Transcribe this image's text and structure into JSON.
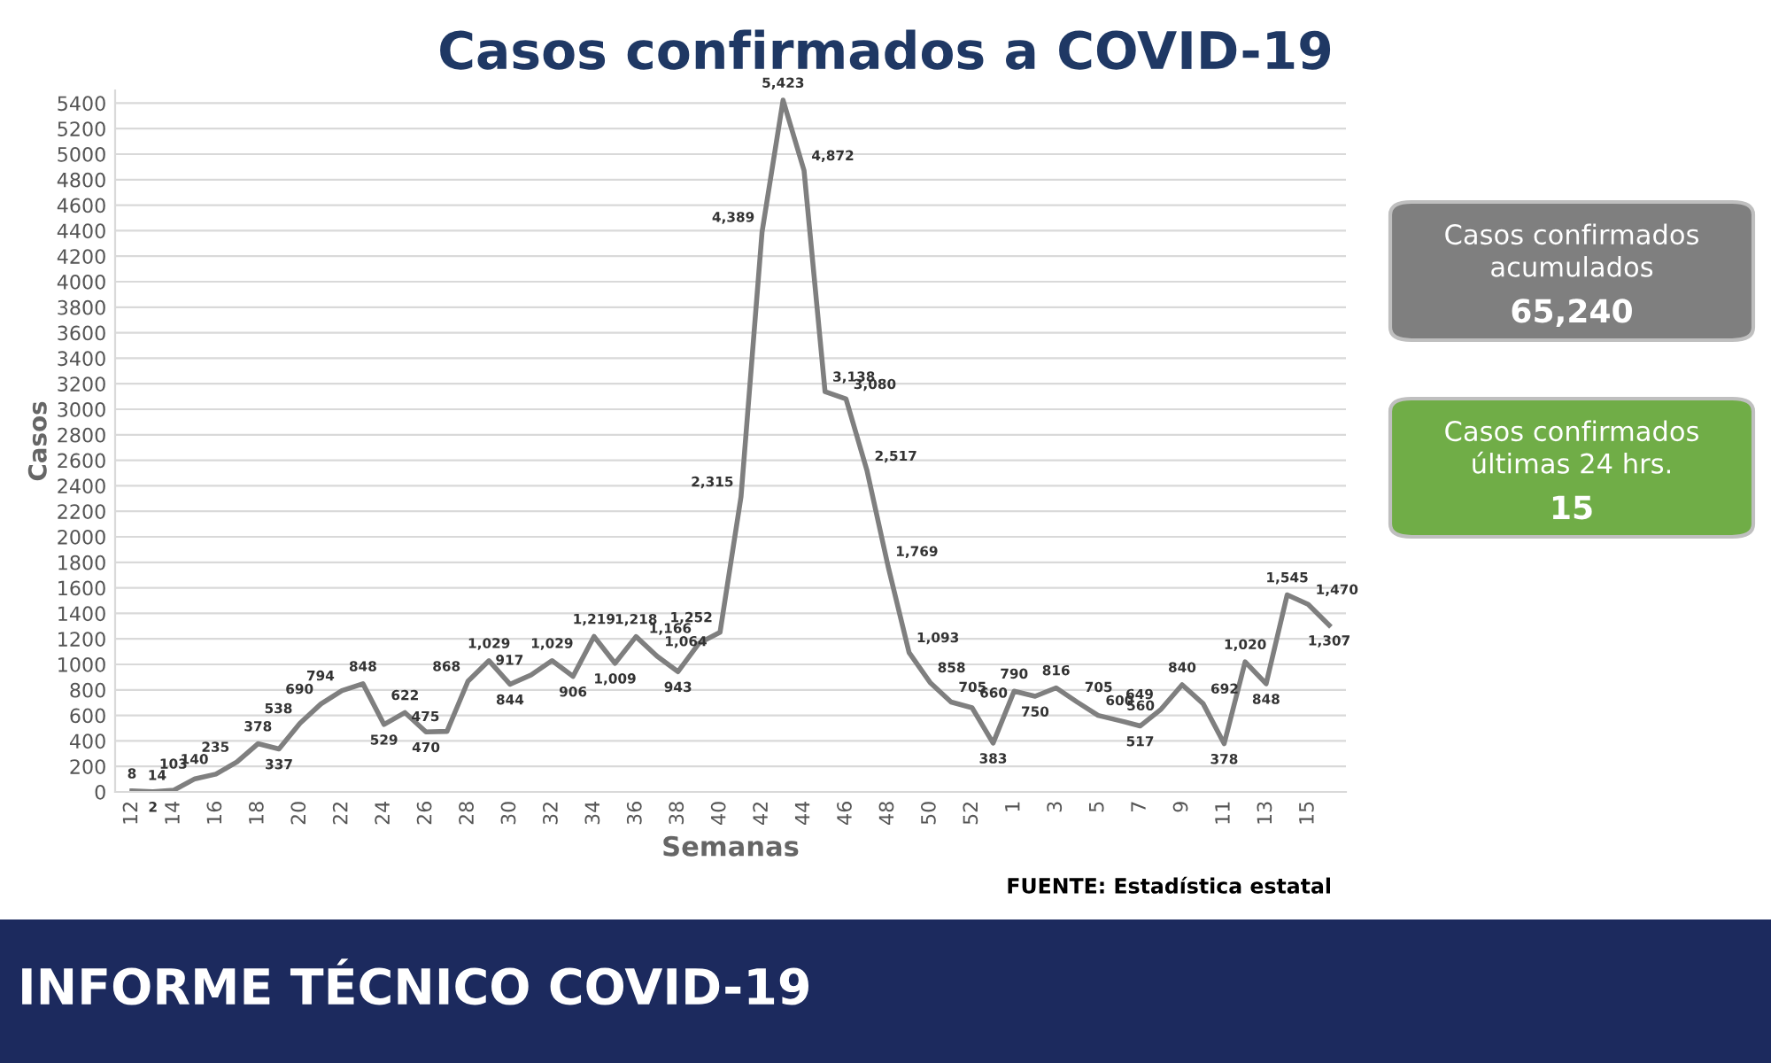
{
  "chart_data": {
    "type": "line",
    "title": "Casos confirmados a COVID-19",
    "xlabel": "Semanas",
    "ylabel": "Casos",
    "categories": [
      "12",
      null,
      "14",
      null,
      "16",
      null,
      "18",
      null,
      "20",
      null,
      "22",
      null,
      "24",
      null,
      "26",
      null,
      "28",
      null,
      "30",
      null,
      "32",
      null,
      "34",
      null,
      "36",
      null,
      "38",
      null,
      "40",
      null,
      "42",
      null,
      "44",
      null,
      "46",
      null,
      "48",
      null,
      "50",
      null,
      "52",
      null,
      "1",
      null,
      "3",
      null,
      "5",
      null,
      "7",
      null,
      "9",
      null,
      "11",
      null,
      "13",
      null,
      "15",
      null
    ],
    "series": [
      {
        "color": "#7f7f7f",
        "values": [
          8,
          2,
          14,
          103,
          140,
          235,
          378,
          337,
          538,
          690,
          794,
          848,
          529,
          622,
          470,
          475,
          868,
          1029,
          844,
          917,
          1029,
          906,
          1219,
          1009,
          1218,
          1064,
          943,
          1166,
          1252,
          2315,
          4389,
          5423,
          4872,
          3138,
          3080,
          2517,
          1769,
          1093,
          858,
          705,
          660,
          383,
          790,
          750,
          816,
          705,
          600,
          560,
          517,
          649,
          840,
          692,
          378,
          1020,
          848,
          1545,
          1470,
          1307
        ],
        "value_labels": [
          "8",
          "2",
          "14",
          "103",
          "140",
          "235",
          "378",
          "337",
          "538",
          "690",
          "794",
          "848",
          "529",
          "622",
          "470",
          "475",
          "868",
          "1,029",
          "844",
          "917",
          "1,029",
          "906",
          "1,219",
          "1,009",
          "1,218",
          "1,064",
          "943",
          "1,166",
          "1,252",
          "2,315",
          "4,389",
          "5,423",
          "4,872",
          "3,138",
          "3,080",
          "2,517",
          "1,769",
          "1,093",
          "858",
          "705",
          "660",
          "383",
          "790",
          "750",
          "816",
          "705",
          "600",
          "560",
          "517",
          "649",
          "840",
          "692",
          "378",
          "1,020",
          "848",
          "1,545",
          "1,470",
          "1,307"
        ]
      }
    ],
    "ylim": [
      0,
      5500
    ],
    "yticks": [
      0,
      200,
      400,
      600,
      800,
      1000,
      1200,
      1400,
      1600,
      1800,
      2000,
      2200,
      2400,
      2600,
      2800,
      3000,
      3200,
      3400,
      3600,
      3800,
      4000,
      4200,
      4400,
      4600,
      4800,
      5000,
      5200,
      5400
    ],
    "grid": "y",
    "marker": "none",
    "line_style": "solid",
    "annotations": [
      "FUENTE: Estadística estatal",
      "Casos confirmados acumulados",
      "65,240",
      "Casos confirmados últimas 24 hrs.",
      "15",
      "INFORME TÉCNICO COVID-19"
    ]
  }
}
